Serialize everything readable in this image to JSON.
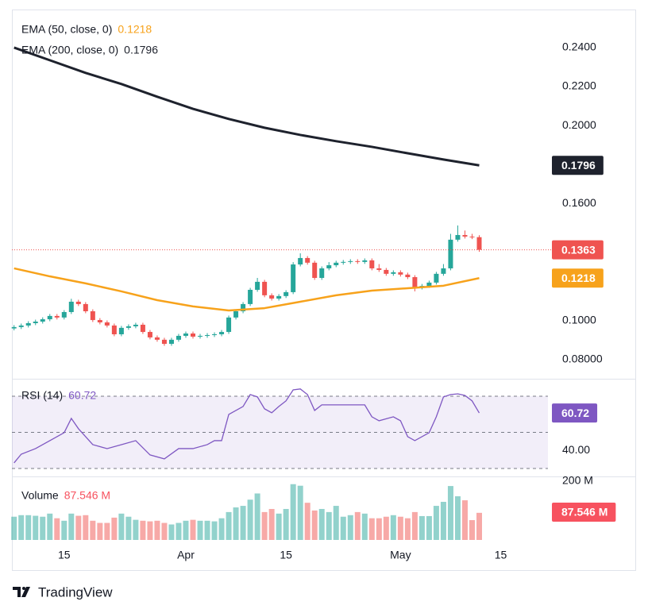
{
  "chart_data": {
    "type": "candlestick",
    "open": [
      0.096,
      0.0967,
      0.0975,
      0.0987,
      0.0995,
      0.1007,
      0.1024,
      0.1016,
      0.1044,
      0.1097,
      0.1085,
      0.1048,
      0.1003,
      0.0991,
      0.0975,
      0.093,
      0.0963,
      0.0971,
      0.0979,
      0.0942,
      0.0914,
      0.0902,
      0.0881,
      0.0902,
      0.0922,
      0.0934,
      0.0918,
      0.0922,
      0.0926,
      0.093,
      0.0942,
      0.1016,
      0.1048,
      0.1085,
      0.1158,
      0.1199,
      0.113,
      0.1113,
      0.1126,
      0.1146,
      0.1288,
      0.1321,
      0.1297,
      0.1219,
      0.1268,
      0.1284,
      0.1297,
      0.1301,
      0.1305,
      0.1301,
      0.1309,
      0.1268,
      0.126,
      0.124,
      0.1248,
      0.1236,
      0.1223,
      0.117,
      0.1178,
      0.1195,
      0.124,
      0.1268,
      0.1415,
      0.1439,
      0.1431,
      0.1428
    ],
    "high": [
      0.0977,
      0.0985,
      0.0997,
      0.1005,
      0.1017,
      0.1034,
      0.1034,
      0.1054,
      0.1112,
      0.1107,
      0.1095,
      0.1058,
      0.1013,
      0.1001,
      0.0985,
      0.0973,
      0.0981,
      0.0989,
      0.0989,
      0.0952,
      0.0924,
      0.0912,
      0.0912,
      0.0932,
      0.0944,
      0.0944,
      0.0932,
      0.0936,
      0.094,
      0.0952,
      0.1026,
      0.1058,
      0.1095,
      0.1168,
      0.1219,
      0.1209,
      0.114,
      0.1136,
      0.1156,
      0.13,
      0.1345,
      0.1331,
      0.1307,
      0.1278,
      0.13,
      0.1307,
      0.1311,
      0.1315,
      0.1315,
      0.1319,
      0.1319,
      0.129,
      0.127,
      0.1258,
      0.1258,
      0.1246,
      0.1233,
      0.1188,
      0.1205,
      0.125,
      0.129,
      0.1445,
      0.1488,
      0.1462,
      0.1445,
      0.1438
    ],
    "low": [
      0.095,
      0.0957,
      0.0965,
      0.0977,
      0.0985,
      0.0997,
      0.1006,
      0.1006,
      0.1034,
      0.1075,
      0.1038,
      0.0993,
      0.0981,
      0.0965,
      0.092,
      0.092,
      0.0953,
      0.0961,
      0.0932,
      0.0904,
      0.0892,
      0.0871,
      0.0871,
      0.0892,
      0.0912,
      0.0908,
      0.0908,
      0.0912,
      0.0916,
      0.092,
      0.0932,
      0.1006,
      0.1038,
      0.1075,
      0.1148,
      0.112,
      0.1103,
      0.1103,
      0.1116,
      0.1136,
      0.1278,
      0.1287,
      0.1209,
      0.1209,
      0.1258,
      0.1274,
      0.1287,
      0.1291,
      0.1291,
      0.1291,
      0.1258,
      0.125,
      0.123,
      0.123,
      0.1226,
      0.1213,
      0.115,
      0.116,
      0.1168,
      0.1185,
      0.123,
      0.1258,
      0.1405,
      0.1421,
      0.1418,
      0.1353
    ],
    "close": [
      0.0967,
      0.0975,
      0.0987,
      0.0995,
      0.1007,
      0.1024,
      0.1016,
      0.1044,
      0.1097,
      0.1085,
      0.1048,
      0.1003,
      0.0991,
      0.0975,
      0.093,
      0.0963,
      0.0971,
      0.0979,
      0.0942,
      0.0914,
      0.0902,
      0.0881,
      0.0902,
      0.0922,
      0.0934,
      0.0918,
      0.0922,
      0.0926,
      0.093,
      0.0942,
      0.1016,
      0.1048,
      0.1085,
      0.1158,
      0.1199,
      0.113,
      0.1113,
      0.1126,
      0.1146,
      0.1288,
      0.1321,
      0.1297,
      0.1219,
      0.1268,
      0.1284,
      0.1297,
      0.1301,
      0.1305,
      0.1301,
      0.1309,
      0.1268,
      0.126,
      0.124,
      0.1248,
      0.1236,
      0.1223,
      0.117,
      0.1178,
      0.1195,
      0.124,
      0.1268,
      0.1415,
      0.1439,
      0.1431,
      0.1428,
      0.1363
    ],
    "up_color": "#26a69a",
    "down_color": "#ef5350",
    "xlim": [
      -0.3,
      74.6
    ],
    "xticks": [
      {
        "value": 7,
        "label": "15"
      },
      {
        "value": 24,
        "label": "Apr"
      },
      {
        "value": 38,
        "label": "15"
      },
      {
        "value": 54,
        "label": "May"
      },
      {
        "value": 68,
        "label": "15"
      }
    ],
    "ylim": [
      0.0702,
      0.2595
    ],
    "yticks": [
      {
        "value": 0.24,
        "label": "0.2400"
      },
      {
        "value": 0.22,
        "label": "0.2200"
      },
      {
        "value": 0.2,
        "label": "0.2000"
      },
      {
        "value": 0.16,
        "label": "0.1600"
      },
      {
        "value": 0.1,
        "label": "0.1000"
      },
      {
        "value": 0.08,
        "label": "0.08000"
      }
    ],
    "last_price_line": true,
    "overlays": [
      {
        "name": "EMA (50, close, 0)",
        "color": "#f7a21b",
        "x": [
          0,
          5,
          10,
          15,
          20,
          25,
          30,
          35,
          40,
          45,
          50,
          55,
          60,
          65
        ],
        "values": [
          0.1268,
          0.1227,
          0.1191,
          0.115,
          0.1105,
          0.1073,
          0.1052,
          0.1064,
          0.1097,
          0.113,
          0.1154,
          0.1166,
          0.1179,
          0.1218
        ]
      },
      {
        "name": "EMA (200, close, 0)",
        "color": "#1e222d",
        "x": [
          0,
          5,
          10,
          15,
          20,
          25,
          30,
          35,
          40,
          45,
          50,
          55,
          60,
          65
        ],
        "values": [
          0.24,
          0.2335,
          0.227,
          0.2213,
          0.2148,
          0.2086,
          0.2034,
          0.1989,
          0.1952,
          0.192,
          0.1891,
          0.1858,
          0.1826,
          0.1796
        ]
      }
    ],
    "rsi": {
      "name": "RSI (14)",
      "color": "#7e57c2",
      "x": [
        0,
        1,
        3,
        5,
        7,
        8,
        9,
        11,
        13,
        15,
        17,
        19,
        21,
        23,
        25,
        27,
        28,
        29,
        30,
        32,
        33,
        34,
        35,
        36,
        37,
        38,
        39,
        40,
        41,
        42,
        43,
        45,
        47,
        49,
        50,
        51,
        53,
        54,
        55,
        56,
        58,
        59,
        60,
        61,
        62,
        63,
        64,
        65
      ],
      "values": [
        33.1,
        37.9,
        41.0,
        45.4,
        49.8,
        57.7,
        52.0,
        43.2,
        41.0,
        43.2,
        45.4,
        37.5,
        35.3,
        41.0,
        41.0,
        43.2,
        45.4,
        45.4,
        59.9,
        64.3,
        70.9,
        69.6,
        63.0,
        60.8,
        64.3,
        67.4,
        73.5,
        74.0,
        70.9,
        62.1,
        65.2,
        65.2,
        65.2,
        65.2,
        58.6,
        56.4,
        58.6,
        56.4,
        47.6,
        45.4,
        49.8,
        58.6,
        69.6,
        70.9,
        71.3,
        70.4,
        67.4,
        60.72
      ],
      "ylim": [
        25.6,
        79.2
      ],
      "yticks": [
        {
          "value": 40,
          "label": "40.00"
        }
      ],
      "bands": [
        30,
        50,
        70
      ]
    },
    "volume": {
      "name": "Volume",
      "values": [
        75,
        80,
        80,
        78,
        75,
        85,
        70,
        62,
        85,
        78,
        80,
        62,
        55,
        55,
        72,
        85,
        75,
        65,
        62,
        60,
        62,
        55,
        50,
        55,
        62,
        65,
        62,
        62,
        60,
        70,
        90,
        105,
        110,
        130,
        150,
        90,
        100,
        85,
        100,
        180,
        175,
        120,
        95,
        100,
        90,
        110,
        75,
        80,
        90,
        85,
        70,
        70,
        75,
        80,
        75,
        70,
        90,
        77,
        77,
        110,
        123,
        174,
        141,
        128,
        64,
        87.546
      ],
      "value_labels": [
        null,
        null,
        null,
        null,
        null,
        null,
        null,
        null,
        null,
        null,
        null,
        null,
        null,
        null,
        null,
        null,
        null,
        null,
        null,
        null,
        null,
        null,
        null,
        null,
        null,
        null,
        null,
        null,
        null,
        null,
        null,
        null,
        null,
        null,
        null,
        null,
        null,
        null,
        null,
        null,
        null,
        null,
        null,
        null,
        null,
        null,
        null,
        null,
        null,
        null,
        null,
        null,
        null,
        null,
        null,
        null,
        null,
        null,
        null,
        null,
        null,
        null,
        null,
        null,
        null,
        "87.546 M"
      ],
      "ylim": [
        0,
        205
      ],
      "yticks": [
        {
          "value": 200,
          "label": "200 M"
        }
      ],
      "label_color": "#f7525f"
    }
  },
  "footer": {
    "brand": "TradingView"
  }
}
